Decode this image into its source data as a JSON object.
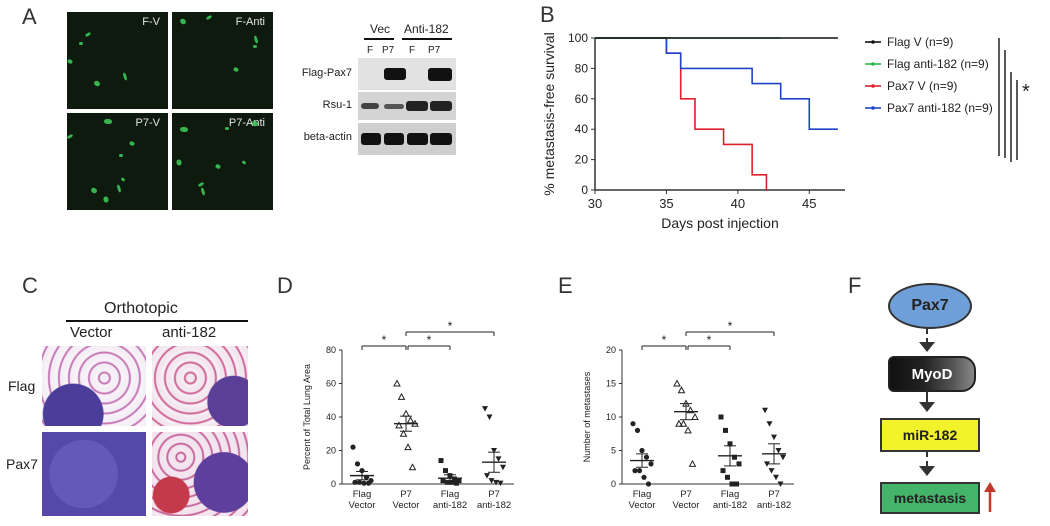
{
  "panels": {
    "A": "A",
    "B": "B",
    "C": "C",
    "D": "D",
    "E": "E",
    "F": "F"
  },
  "panelA": {
    "images": [
      "F-V",
      "F-Anti",
      "P7-V",
      "P7-Anti"
    ],
    "blot": {
      "groups": [
        "Vec",
        "Anti-182"
      ],
      "lanes": [
        "F",
        "P7",
        "F",
        "P7"
      ],
      "rows": [
        "Flag-Pax7",
        "Rsu-1",
        "beta-actin"
      ]
    }
  },
  "panelC": {
    "title": "Orthotopic",
    "columns": [
      "Vector",
      "anti-182"
    ],
    "rows": [
      "Flag",
      "Pax7"
    ]
  },
  "panelF": {
    "nodes": [
      "Pax7",
      "MyoD",
      "miR-182",
      "metastasis"
    ],
    "colors": {
      "pax7": "#6f9fd8",
      "myod": "#222222",
      "mir182": "#f2f22a",
      "metastasis": "#45b46b",
      "up_arrow": "#c0392b"
    }
  },
  "chart_data": [
    {
      "type": "line",
      "panel": "B",
      "xlabel": "Days post injection",
      "ylabel": "% metastasis-free survival",
      "xlim": [
        30,
        47.5
      ],
      "ylim": [
        0,
        100
      ],
      "xticks": [
        30,
        35,
        40,
        45
      ],
      "yticks": [
        0,
        20,
        40,
        60,
        80,
        100
      ],
      "legend_placement": "right",
      "significance_label": "*",
      "series": [
        {
          "name": "Flag V (n=9)",
          "color": "#111111",
          "x": [
            30,
            47
          ],
          "y": [
            100,
            100
          ]
        },
        {
          "name": "Flag anti-182 (n=9)",
          "color": "#2db34a",
          "x": [
            30,
            43
          ],
          "y": [
            100,
            100
          ]
        },
        {
          "name": "Pax7 V (n=9)",
          "color": "#e0202a",
          "x": [
            30,
            35,
            35,
            36,
            36,
            37,
            37,
            39,
            39,
            41,
            41,
            42,
            42
          ],
          "y": [
            100,
            100,
            90,
            90,
            60,
            60,
            40,
            40,
            30,
            30,
            10,
            10,
            0
          ]
        },
        {
          "name": "Pax7 anti-182 (n=9)",
          "color": "#2044c8",
          "x": [
            30,
            35,
            35,
            36,
            36,
            37,
            37,
            41,
            41,
            43,
            43,
            45,
            45,
            47
          ],
          "y": [
            100,
            100,
            90,
            90,
            80,
            80,
            80,
            80,
            70,
            70,
            60,
            60,
            40,
            40
          ]
        }
      ]
    },
    {
      "type": "scatter",
      "panel": "D",
      "ylabel": "Percent of Total Lung Area",
      "ylim": [
        0,
        80
      ],
      "yticks": [
        0,
        20,
        40,
        60,
        80
      ],
      "categories": [
        "Flag\nVector",
        "P7\nVector",
        "Flag\nanti-182",
        "P7\nanti-182"
      ],
      "significance_label": "*",
      "comparisons": [
        [
          0,
          1
        ],
        [
          1,
          2
        ],
        [
          1,
          3
        ]
      ],
      "series": [
        {
          "name": "Flag Vector",
          "marker": "circle",
          "values": [
            22,
            12,
            8,
            4,
            2,
            1,
            1,
            0.5,
            0.5
          ],
          "mean": 5,
          "sem": 2.5
        },
        {
          "name": "P7 Vector",
          "marker": "triangle-up",
          "values": [
            60,
            52,
            42,
            38,
            36,
            35,
            30,
            22,
            10
          ],
          "mean": 36,
          "sem": 4.5
        },
        {
          "name": "Flag anti-182",
          "marker": "square",
          "values": [
            14,
            8,
            5,
            3,
            2,
            2,
            1,
            1,
            0.5
          ],
          "mean": 3.5,
          "sem": 2
        },
        {
          "name": "P7 anti-182",
          "marker": "triangle-down",
          "values": [
            45,
            40,
            20,
            15,
            10,
            5,
            2,
            1,
            0.5
          ],
          "mean": 13,
          "sem": 6
        }
      ]
    },
    {
      "type": "scatter",
      "panel": "E",
      "ylabel": "Number of metastases",
      "ylim": [
        0,
        20
      ],
      "yticks": [
        0,
        5,
        10,
        15,
        20
      ],
      "categories": [
        "Flag\nVector",
        "P7\nVector",
        "Flag\nanti-182",
        "P7\nanti-182"
      ],
      "significance_label": "*",
      "comparisons": [
        [
          0,
          1
        ],
        [
          1,
          2
        ],
        [
          1,
          3
        ]
      ],
      "series": [
        {
          "name": "Flag Vector",
          "marker": "circle",
          "values": [
            9,
            8,
            5,
            4,
            3,
            2,
            2,
            1,
            0
          ],
          "mean": 3.5,
          "sem": 1
        },
        {
          "name": "P7 Vector",
          "marker": "triangle-up",
          "values": [
            15,
            14,
            12,
            11,
            10,
            9,
            9,
            8,
            3
          ],
          "mean": 10.8,
          "sem": 1.2
        },
        {
          "name": "Flag anti-182",
          "marker": "square",
          "values": [
            10,
            8,
            6,
            4,
            3,
            2,
            1,
            0,
            0
          ],
          "mean": 4.2,
          "sem": 1.5
        },
        {
          "name": "P7 anti-182",
          "marker": "triangle-down",
          "values": [
            11,
            9,
            7,
            5,
            4,
            3,
            2,
            1,
            0
          ],
          "mean": 4.5,
          "sem": 1.5
        }
      ]
    }
  ]
}
